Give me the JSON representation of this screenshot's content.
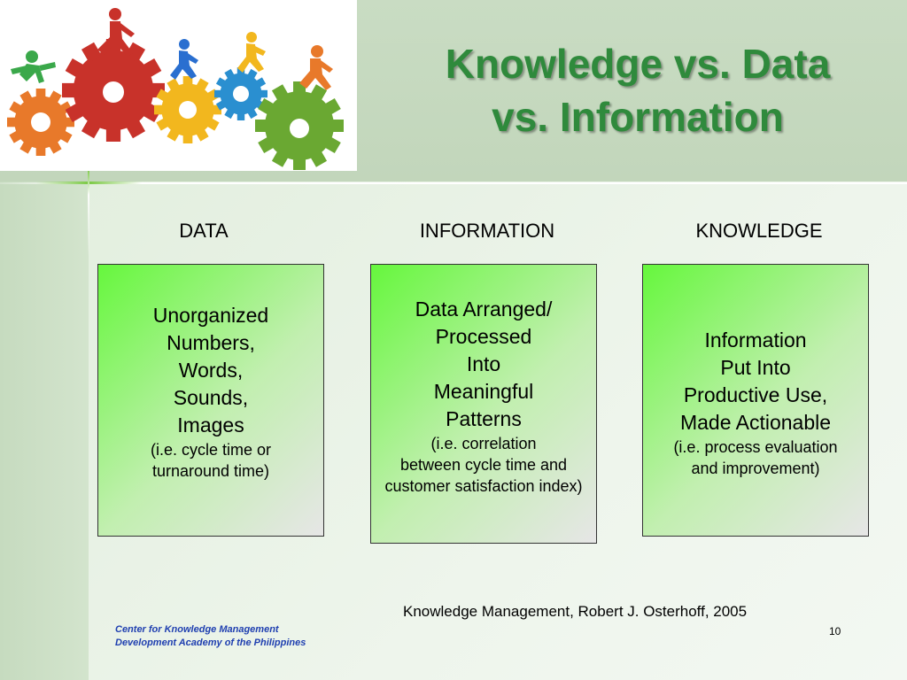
{
  "slide": {
    "title_line1": "Knowledge vs. Data",
    "title_line2": "vs. Information",
    "page_number": "10"
  },
  "columns": [
    {
      "heading": "DATA",
      "main_lines": [
        "Unorganized",
        "Numbers,",
        "Words,",
        "Sounds,",
        "Images"
      ],
      "sub_lines": [
        "(i.e. cycle time or",
        "turnaround time)"
      ]
    },
    {
      "heading": "INFORMATION",
      "main_lines": [
        "Data Arranged/",
        "Processed",
        "Into",
        "Meaningful",
        "Patterns"
      ],
      "sub_lines": [
        "(i.e. correlation",
        "between cycle time and",
        "customer satisfaction index)"
      ]
    },
    {
      "heading": "KNOWLEDGE",
      "main_lines": [
        "Information",
        "Put Into",
        "Productive Use,",
        "Made Actionable"
      ],
      "sub_lines": [
        "(i.e. process evaluation",
        "and improvement)"
      ]
    }
  ],
  "citation": "Knowledge Management, Robert J. Osterhoff, 2005",
  "footer": {
    "line1": "Center for Knowledge Management",
    "line2": "Development Academy of the Philippines"
  },
  "colors": {
    "title": "#2f8a3c",
    "card_gradient_top": "#66f73d",
    "card_gradient_bottom": "#e6e6e6",
    "footer_text": "#1f3fb0"
  },
  "logo": {
    "gear_colors": [
      "#e8792a",
      "#c8322a",
      "#f2b71e",
      "#2a8fd0",
      "#6aa832"
    ],
    "figure_colors": [
      "#3aa84a",
      "#c8322a",
      "#2a6fd0",
      "#f2b71e",
      "#e8792a"
    ]
  }
}
